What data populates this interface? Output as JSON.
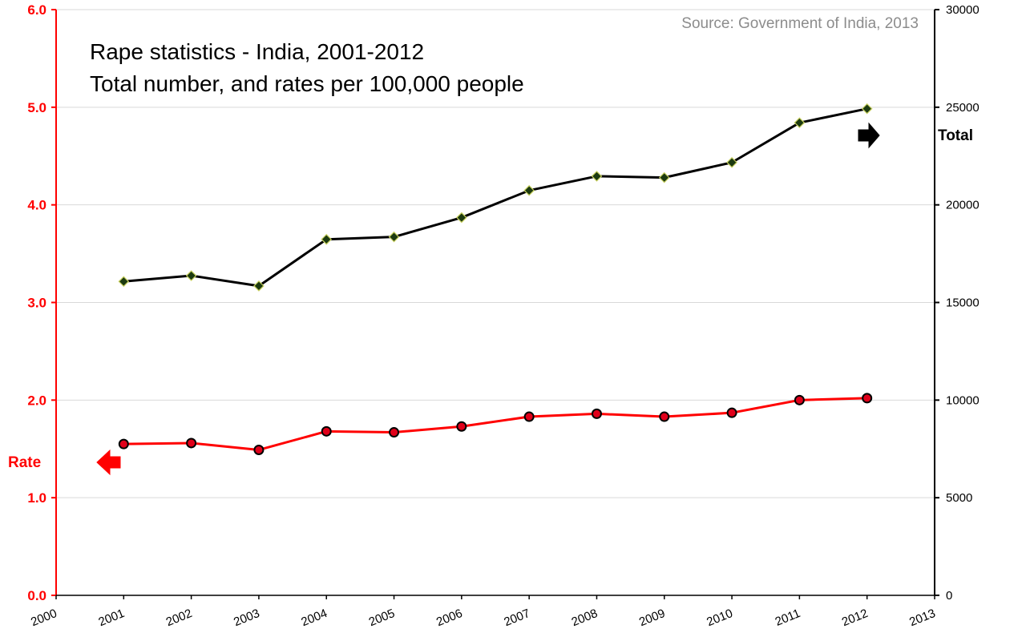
{
  "chart_data": {
    "type": "line",
    "title_line1": "Rape statistics - India, 2001-2012",
    "title_line2": "Total number, and rates per 100,000 people",
    "source": "Source: Government of India, 2013",
    "x": [
      2001,
      2002,
      2003,
      2004,
      2005,
      2006,
      2007,
      2008,
      2009,
      2010,
      2011,
      2012
    ],
    "x_range": [
      2000,
      2013
    ],
    "x_ticks": [
      "2000",
      "2001",
      "2002",
      "2003",
      "2004",
      "2005",
      "2006",
      "2007",
      "2008",
      "2009",
      "2010",
      "2011",
      "2012",
      "2013"
    ],
    "left_axis": {
      "range": [
        0,
        6
      ],
      "ticks": [
        "0.0",
        "1.0",
        "2.0",
        "3.0",
        "4.0",
        "5.0",
        "6.0"
      ],
      "color": "#ff0000"
    },
    "right_axis": {
      "range": [
        0,
        30000
      ],
      "ticks": [
        "0",
        "5000",
        "10000",
        "15000",
        "20000",
        "25000",
        "30000"
      ],
      "color": "#000000"
    },
    "grid": true,
    "series": [
      {
        "name": "Total",
        "axis": "right",
        "color": "#000000",
        "marker": "diamond",
        "marker_fill": "#1c3a10",
        "marker_stroke": "#c8d060",
        "values": [
          16075,
          16373,
          15847,
          18233,
          18359,
          19348,
          20737,
          21467,
          21397,
          22172,
          24206,
          24923
        ]
      },
      {
        "name": "Rate",
        "axis": "left",
        "color": "#ff0000",
        "marker": "circle",
        "marker_fill": "#e0001a",
        "marker_stroke": "#000000",
        "values": [
          1.55,
          1.56,
          1.49,
          1.68,
          1.67,
          1.73,
          1.83,
          1.86,
          1.83,
          1.87,
          2.0,
          2.02
        ]
      }
    ]
  }
}
